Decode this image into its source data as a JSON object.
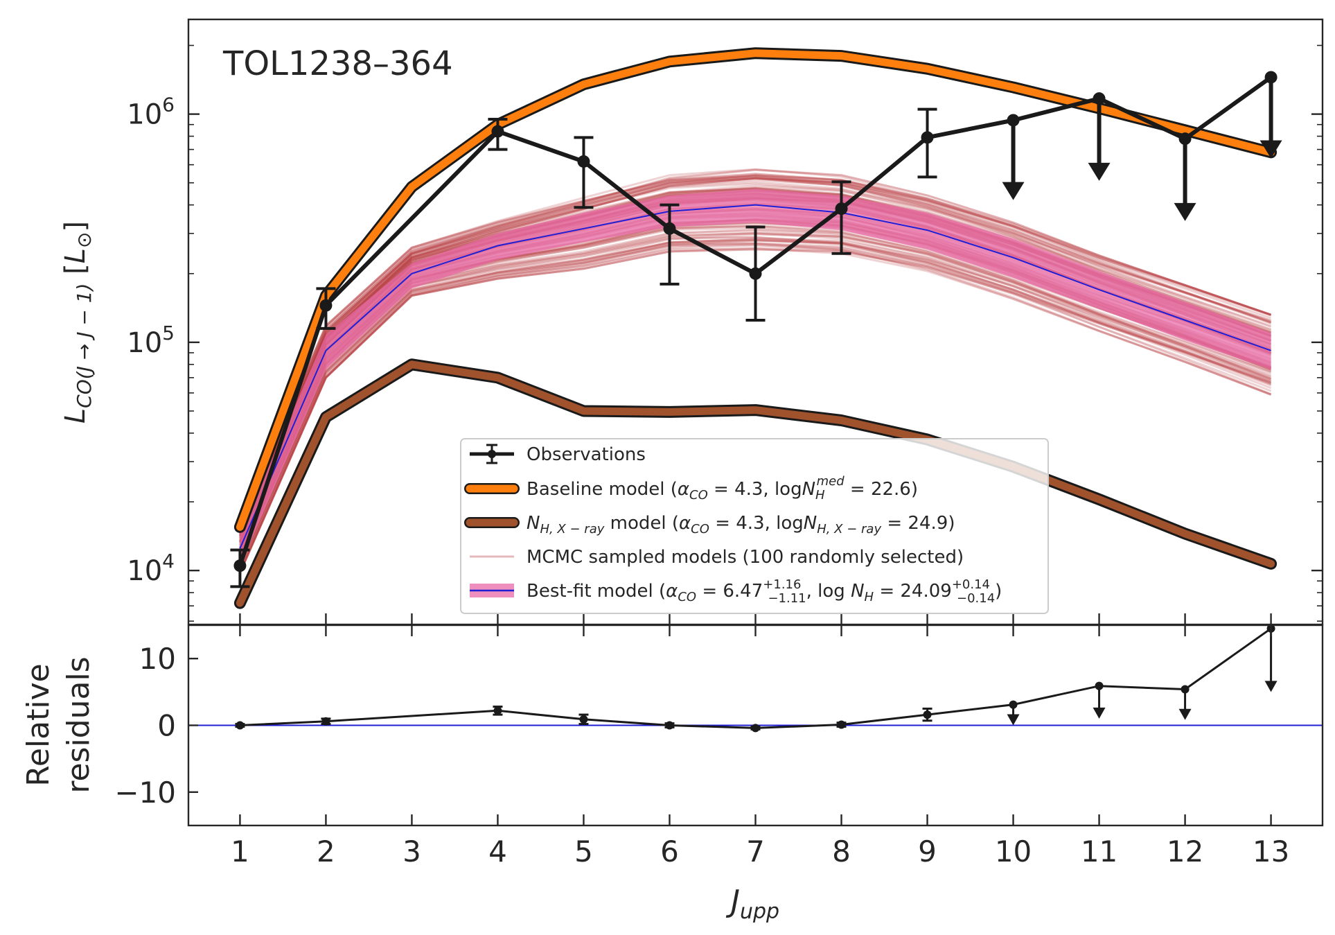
{
  "chart_data": [
    {
      "type": "line",
      "panel": "main",
      "title": "TOL1238–364",
      "xlabel": "",
      "ylabel": "L_CO(J→J−1) [L⊙]",
      "yscale": "log",
      "ylim": [
        5800,
        2600000
      ],
      "xlim": [
        0.4,
        13.6
      ],
      "y_ticks": [
        10000,
        100000,
        1000000
      ],
      "y_tick_labels": [
        {
          "base": "10",
          "exp": "4"
        },
        {
          "base": "10",
          "exp": "5"
        },
        {
          "base": "10",
          "exp": "6"
        }
      ],
      "grid": false,
      "legend_position": "lower-center",
      "colors": {
        "observations": "#1a1a1a",
        "baseline": "#ff7f0e",
        "nh_xray": "#a0522d",
        "mcmc": "#b5363c",
        "bestfit_band": "#e96aa7",
        "bestfit_line": "#1f1fd6"
      },
      "observations": {
        "x": [
          1,
          2,
          3,
          4,
          5,
          6,
          7,
          8,
          9,
          10,
          11,
          12,
          13
        ],
        "y": [
          10500,
          145000,
          null,
          840000,
          620000,
          315000,
          200000,
          385000,
          790000,
          940000,
          1170000,
          780000,
          1450000
        ],
        "err_low": [
          8500,
          115000,
          null,
          700000,
          390000,
          180000,
          125000,
          245000,
          530000,
          null,
          null,
          null,
          null
        ],
        "err_high": [
          12300,
          172000,
          null,
          950000,
          790000,
          400000,
          320000,
          505000,
          1050000,
          null,
          null,
          null,
          null
        ],
        "upper_limit": [
          false,
          false,
          false,
          false,
          false,
          false,
          false,
          false,
          false,
          true,
          true,
          true,
          true
        ],
        "arrow_to": [
          null,
          null,
          null,
          null,
          null,
          null,
          null,
          null,
          null,
          420000,
          510000,
          340000,
          640000
        ]
      },
      "baseline_model": {
        "x": [
          1,
          2,
          3,
          4,
          5,
          6,
          7,
          8,
          9,
          10,
          11,
          12,
          13
        ],
        "y": [
          15500,
          160000,
          480000,
          900000,
          1350000,
          1700000,
          1850000,
          1800000,
          1580000,
          1310000,
          1060000,
          850000,
          680000
        ]
      },
      "nh_xray_model": {
        "x": [
          1,
          2,
          3,
          4,
          5,
          6,
          7,
          8,
          9,
          10,
          11,
          12,
          13
        ],
        "y": [
          7200,
          47000,
          80000,
          70000,
          50000,
          49500,
          50500,
          45500,
          37500,
          28500,
          20500,
          14500,
          10700
        ]
      },
      "bestfit_model": {
        "x": [
          1,
          2,
          3,
          4,
          5,
          6,
          7,
          8,
          9,
          10,
          11,
          12,
          13
        ],
        "y": [
          12500,
          92000,
          200000,
          265000,
          315000,
          375000,
          400000,
          370000,
          310000,
          235000,
          170000,
          125000,
          92000
        ],
        "lower": [
          10500,
          76000,
          172000,
          230000,
          275000,
          320000,
          335000,
          310000,
          255000,
          192000,
          140000,
          102000,
          76000
        ],
        "upper": [
          14500,
          108000,
          222000,
          300000,
          370000,
          440000,
          470000,
          440000,
          370000,
          285000,
          205000,
          150000,
          110000
        ]
      },
      "mcmc_envelope": {
        "x": [
          1,
          2,
          3,
          4,
          5,
          6,
          7,
          8,
          9,
          10,
          11,
          12,
          13
        ],
        "lower": [
          9800,
          70000,
          160000,
          190000,
          210000,
          250000,
          255000,
          245000,
          205000,
          155000,
          112000,
          82000,
          59000
        ],
        "upper": [
          16000,
          118000,
          260000,
          340000,
          430000,
          540000,
          575000,
          540000,
          440000,
          335000,
          240000,
          178000,
          132000
        ]
      },
      "legend": [
        {
          "key": "observations",
          "label": "Observations"
        },
        {
          "key": "baseline",
          "label": "Baseline model (α_CO = 4.3, logN_H^med = 22.6)"
        },
        {
          "key": "nh_xray",
          "label": "N_H,X−ray model (α_CO = 4.3, logN_H,X−ray = 24.9)"
        },
        {
          "key": "mcmc",
          "label": "MCMC sampled models (100 randomly selected)"
        },
        {
          "key": "bestfit",
          "label": "Best-fit model (α_CO = 6.47 +1.16/−1.11, log N_H = 24.09 +0.14/−0.14)"
        }
      ]
    },
    {
      "type": "line",
      "panel": "residuals",
      "xlabel": "J_upp",
      "ylabel": "Relative residuals",
      "ylim": [
        -15,
        15
      ],
      "xlim": [
        0.4,
        13.6
      ],
      "y_ticks": [
        -10,
        0,
        10
      ],
      "x_ticks": [
        1,
        2,
        3,
        4,
        5,
        6,
        7,
        8,
        9,
        10,
        11,
        12,
        13
      ],
      "zero_line_color": "#1f1fd6",
      "residuals": {
        "x": [
          1,
          2,
          4,
          5,
          6,
          7,
          8,
          9,
          10,
          11,
          12,
          13
        ],
        "y": [
          0,
          0.6,
          2.2,
          0.9,
          0,
          -0.4,
          0.1,
          1.6,
          3.1,
          5.9,
          5.4,
          14.5
        ],
        "err": [
          0.2,
          0.4,
          0.6,
          0.7,
          0.3,
          0.2,
          0.3,
          0.9,
          null,
          null,
          null,
          null
        ],
        "upper_limit": [
          false,
          false,
          false,
          false,
          false,
          false,
          false,
          false,
          true,
          true,
          true,
          true
        ],
        "arrow_to": [
          null,
          null,
          null,
          null,
          null,
          null,
          null,
          null,
          0,
          1.0,
          0.8,
          5.0
        ]
      }
    }
  ]
}
